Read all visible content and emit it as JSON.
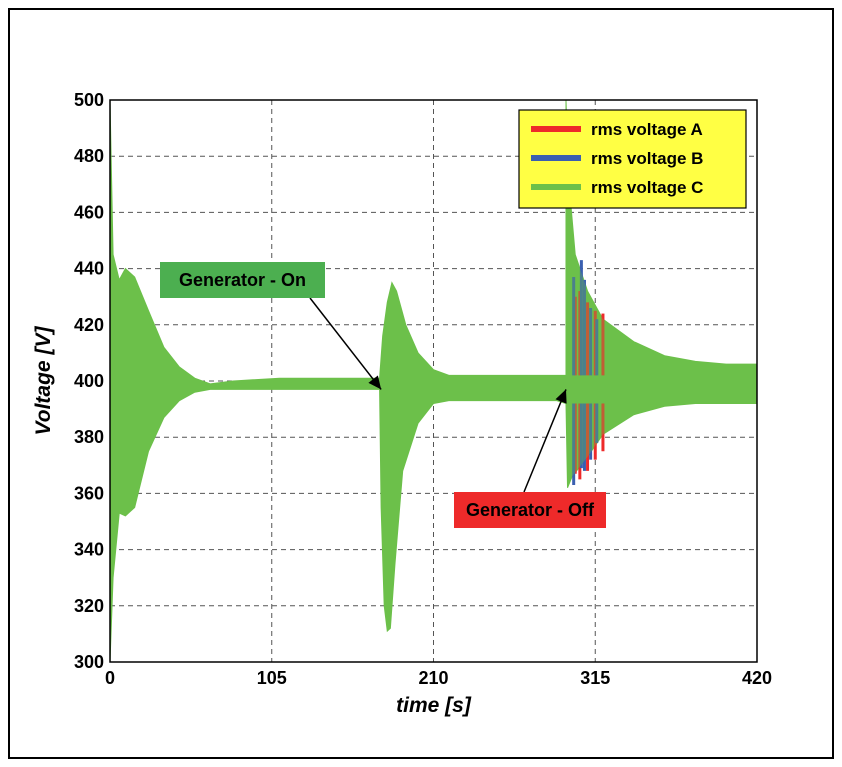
{
  "chart_data": {
    "type": "line",
    "xlabel": "time [s]",
    "ylabel": "Voltage [V]",
    "xlim": [
      0,
      420
    ],
    "ylim": [
      300,
      500
    ],
    "xticks": [
      0,
      105,
      210,
      315,
      420
    ],
    "yticks": [
      300,
      320,
      340,
      360,
      380,
      400,
      420,
      440,
      460,
      480,
      500
    ],
    "grid": true,
    "legend_position": "top-right",
    "legend_background": "#ffff44",
    "series": [
      {
        "name": "rms voltage A",
        "color": "#ee2a2a"
      },
      {
        "name": "rms voltage B",
        "color": "#3a5fb0"
      },
      {
        "name": "rms voltage C",
        "color": "#6cc04a"
      }
    ],
    "envelope": {
      "upper": [
        [
          0,
          500
        ],
        [
          2,
          445
        ],
        [
          6,
          436
        ],
        [
          10,
          440
        ],
        [
          16,
          437
        ],
        [
          25,
          425
        ],
        [
          35,
          412
        ],
        [
          45,
          405
        ],
        [
          55,
          401
        ],
        [
          65,
          399
        ],
        [
          80,
          400
        ],
        [
          110,
          401
        ],
        [
          140,
          401
        ],
        [
          175,
          401
        ],
        [
          177,
          416
        ],
        [
          180,
          428
        ],
        [
          183,
          435
        ],
        [
          186,
          432
        ],
        [
          192,
          420
        ],
        [
          200,
          410
        ],
        [
          210,
          404
        ],
        [
          220,
          402
        ],
        [
          250,
          402
        ],
        [
          290,
          402
        ],
        [
          296,
          402
        ],
        [
          296,
          500
        ],
        [
          298,
          470
        ],
        [
          302,
          445
        ],
        [
          310,
          432
        ],
        [
          320,
          422
        ],
        [
          340,
          414
        ],
        [
          360,
          409
        ],
        [
          380,
          407
        ],
        [
          400,
          406
        ],
        [
          420,
          406
        ]
      ],
      "lower": [
        [
          0,
          300
        ],
        [
          2,
          330
        ],
        [
          6,
          353
        ],
        [
          10,
          352
        ],
        [
          16,
          355
        ],
        [
          25,
          375
        ],
        [
          35,
          387
        ],
        [
          45,
          393
        ],
        [
          55,
          396
        ],
        [
          65,
          397
        ],
        [
          80,
          397
        ],
        [
          110,
          397
        ],
        [
          140,
          397
        ],
        [
          175,
          397
        ],
        [
          176,
          355
        ],
        [
          178,
          320
        ],
        [
          180,
          311
        ],
        [
          182,
          312
        ],
        [
          185,
          335
        ],
        [
          190,
          368
        ],
        [
          200,
          385
        ],
        [
          210,
          392
        ],
        [
          220,
          393
        ],
        [
          250,
          393
        ],
        [
          290,
          393
        ],
        [
          296,
          392
        ],
        [
          297,
          362
        ],
        [
          300,
          366
        ],
        [
          310,
          373
        ],
        [
          320,
          381
        ],
        [
          340,
          388
        ],
        [
          360,
          391
        ],
        [
          380,
          392
        ],
        [
          400,
          392
        ],
        [
          420,
          392
        ]
      ]
    },
    "spikes": [
      {
        "series": "rms voltage A",
        "x": [
          302,
          305,
          310,
          315,
          320
        ],
        "upper": [
          430,
          432,
          428,
          425,
          424
        ],
        "lower": [
          367,
          365,
          368,
          372,
          375
        ]
      },
      {
        "series": "rms voltage B",
        "x": [
          301,
          306,
          308,
          312,
          316
        ],
        "upper": [
          437,
          443,
          436,
          426,
          422
        ],
        "lower": [
          363,
          369,
          368,
          372,
          378
        ]
      }
    ],
    "annotations": [
      {
        "text": "Generator - On",
        "color": "#4caf50",
        "arrow_to": [
          176,
          397
        ]
      },
      {
        "text": "Generator - Off",
        "color": "#ee2a2a",
        "arrow_to": [
          296,
          397
        ]
      }
    ]
  }
}
